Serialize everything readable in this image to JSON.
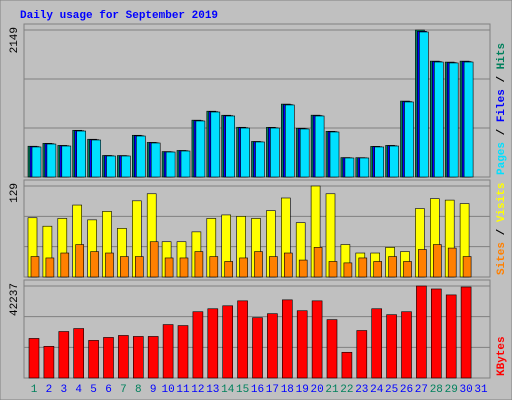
{
  "chart_data": [
    {
      "type": "bar",
      "title": "Daily usage for September 2019",
      "legend_separator": " / ",
      "ylim": [
        0,
        2149
      ],
      "yticks": [
        2149
      ],
      "grid": true,
      "series": [
        {
          "name": "Hits",
          "color": "#00805c",
          "values": [
            450,
            492,
            462,
            683,
            552,
            315,
            314,
            610,
            506,
            372,
            388,
            831,
            962,
            903,
            727,
            520,
            726,
            1066,
            713,
            904,
            668,
            284,
            283,
            448,
            462,
            1110,
            2149,
            1694,
            1680,
            1694,
            0
          ]
        },
        {
          "name": "Files",
          "color": "#0000ff",
          "values": [
            445,
            487,
            457,
            677,
            546,
            311,
            310,
            604,
            501,
            368,
            384,
            825,
            955,
            897,
            721,
            515,
            720,
            1059,
            707,
            898,
            663,
            281,
            280,
            443,
            457,
            1103,
            2130,
            1688,
            1673,
            1688,
            0
          ]
        },
        {
          "name": "Pages",
          "color": "#00e0ff",
          "values": [
            439,
            482,
            453,
            672,
            541,
            307,
            307,
            599,
            497,
            365,
            380,
            819,
            950,
            892,
            716,
            512,
            716,
            1053,
            702,
            892,
            658,
            278,
            278,
            439,
            453,
            1097,
            2120,
            1681,
            1667,
            1681,
            0
          ]
        }
      ]
    },
    {
      "type": "bar",
      "legend_separator": " / ",
      "ylim": [
        0,
        129
      ],
      "yticks": [
        129
      ],
      "grid": true,
      "series": [
        {
          "name": "Visits",
          "color": "#ffff00",
          "values": [
            84,
            72,
            83,
            102,
            81,
            93,
            69,
            108,
            118,
            50,
            50,
            64,
            83,
            88,
            86,
            83,
            94,
            112,
            77,
            129,
            118,
            46,
            34,
            34,
            42,
            36,
            97,
            111,
            109,
            104,
            0
          ]
        },
        {
          "name": "Sites",
          "color": "#ff8000",
          "values": [
            29,
            27,
            34,
            46,
            36,
            34,
            29,
            29,
            50,
            27,
            27,
            36,
            29,
            22,
            27,
            36,
            29,
            34,
            24,
            42,
            22,
            20,
            27,
            22,
            29,
            22,
            39,
            46,
            41,
            29,
            0
          ]
        }
      ]
    },
    {
      "type": "bar",
      "ylim": [
        0,
        42237
      ],
      "yticks": [
        42237
      ],
      "grid": true,
      "categories": [
        "1",
        "2",
        "3",
        "4",
        "5",
        "6",
        "7",
        "8",
        "9",
        "10",
        "11",
        "12",
        "13",
        "14",
        "15",
        "16",
        "17",
        "18",
        "19",
        "20",
        "21",
        "22",
        "23",
        "24",
        "25",
        "26",
        "27",
        "28",
        "29",
        "30",
        "31"
      ],
      "category_colors": [
        "#00805c",
        "#0000ff",
        "#0000ff",
        "#0000ff",
        "#0000ff",
        "#0000ff",
        "#00805c",
        "#00805c",
        "#0000ff",
        "#0000ff",
        "#0000ff",
        "#0000ff",
        "#0000ff",
        "#00805c",
        "#00805c",
        "#0000ff",
        "#0000ff",
        "#0000ff",
        "#0000ff",
        "#0000ff",
        "#00805c",
        "#00805c",
        "#0000ff",
        "#0000ff",
        "#0000ff",
        "#0000ff",
        "#0000ff",
        "#00805c",
        "#00805c",
        "#0000ff",
        "#0000ff"
      ],
      "series": [
        {
          "name": "KBytes",
          "color": "#ff0000",
          "values": [
            18166,
            14533,
            21345,
            22708,
            17258,
            18620,
            19529,
            19075,
            19075,
            24525,
            24071,
            30429,
            31792,
            33154,
            35425,
            27704,
            29521,
            35879,
            30883,
            35425,
            26796,
            11808,
            21800,
            31792,
            29066,
            30429,
            42237,
            40875,
            38150,
            41783,
            0
          ]
        }
      ]
    }
  ]
}
